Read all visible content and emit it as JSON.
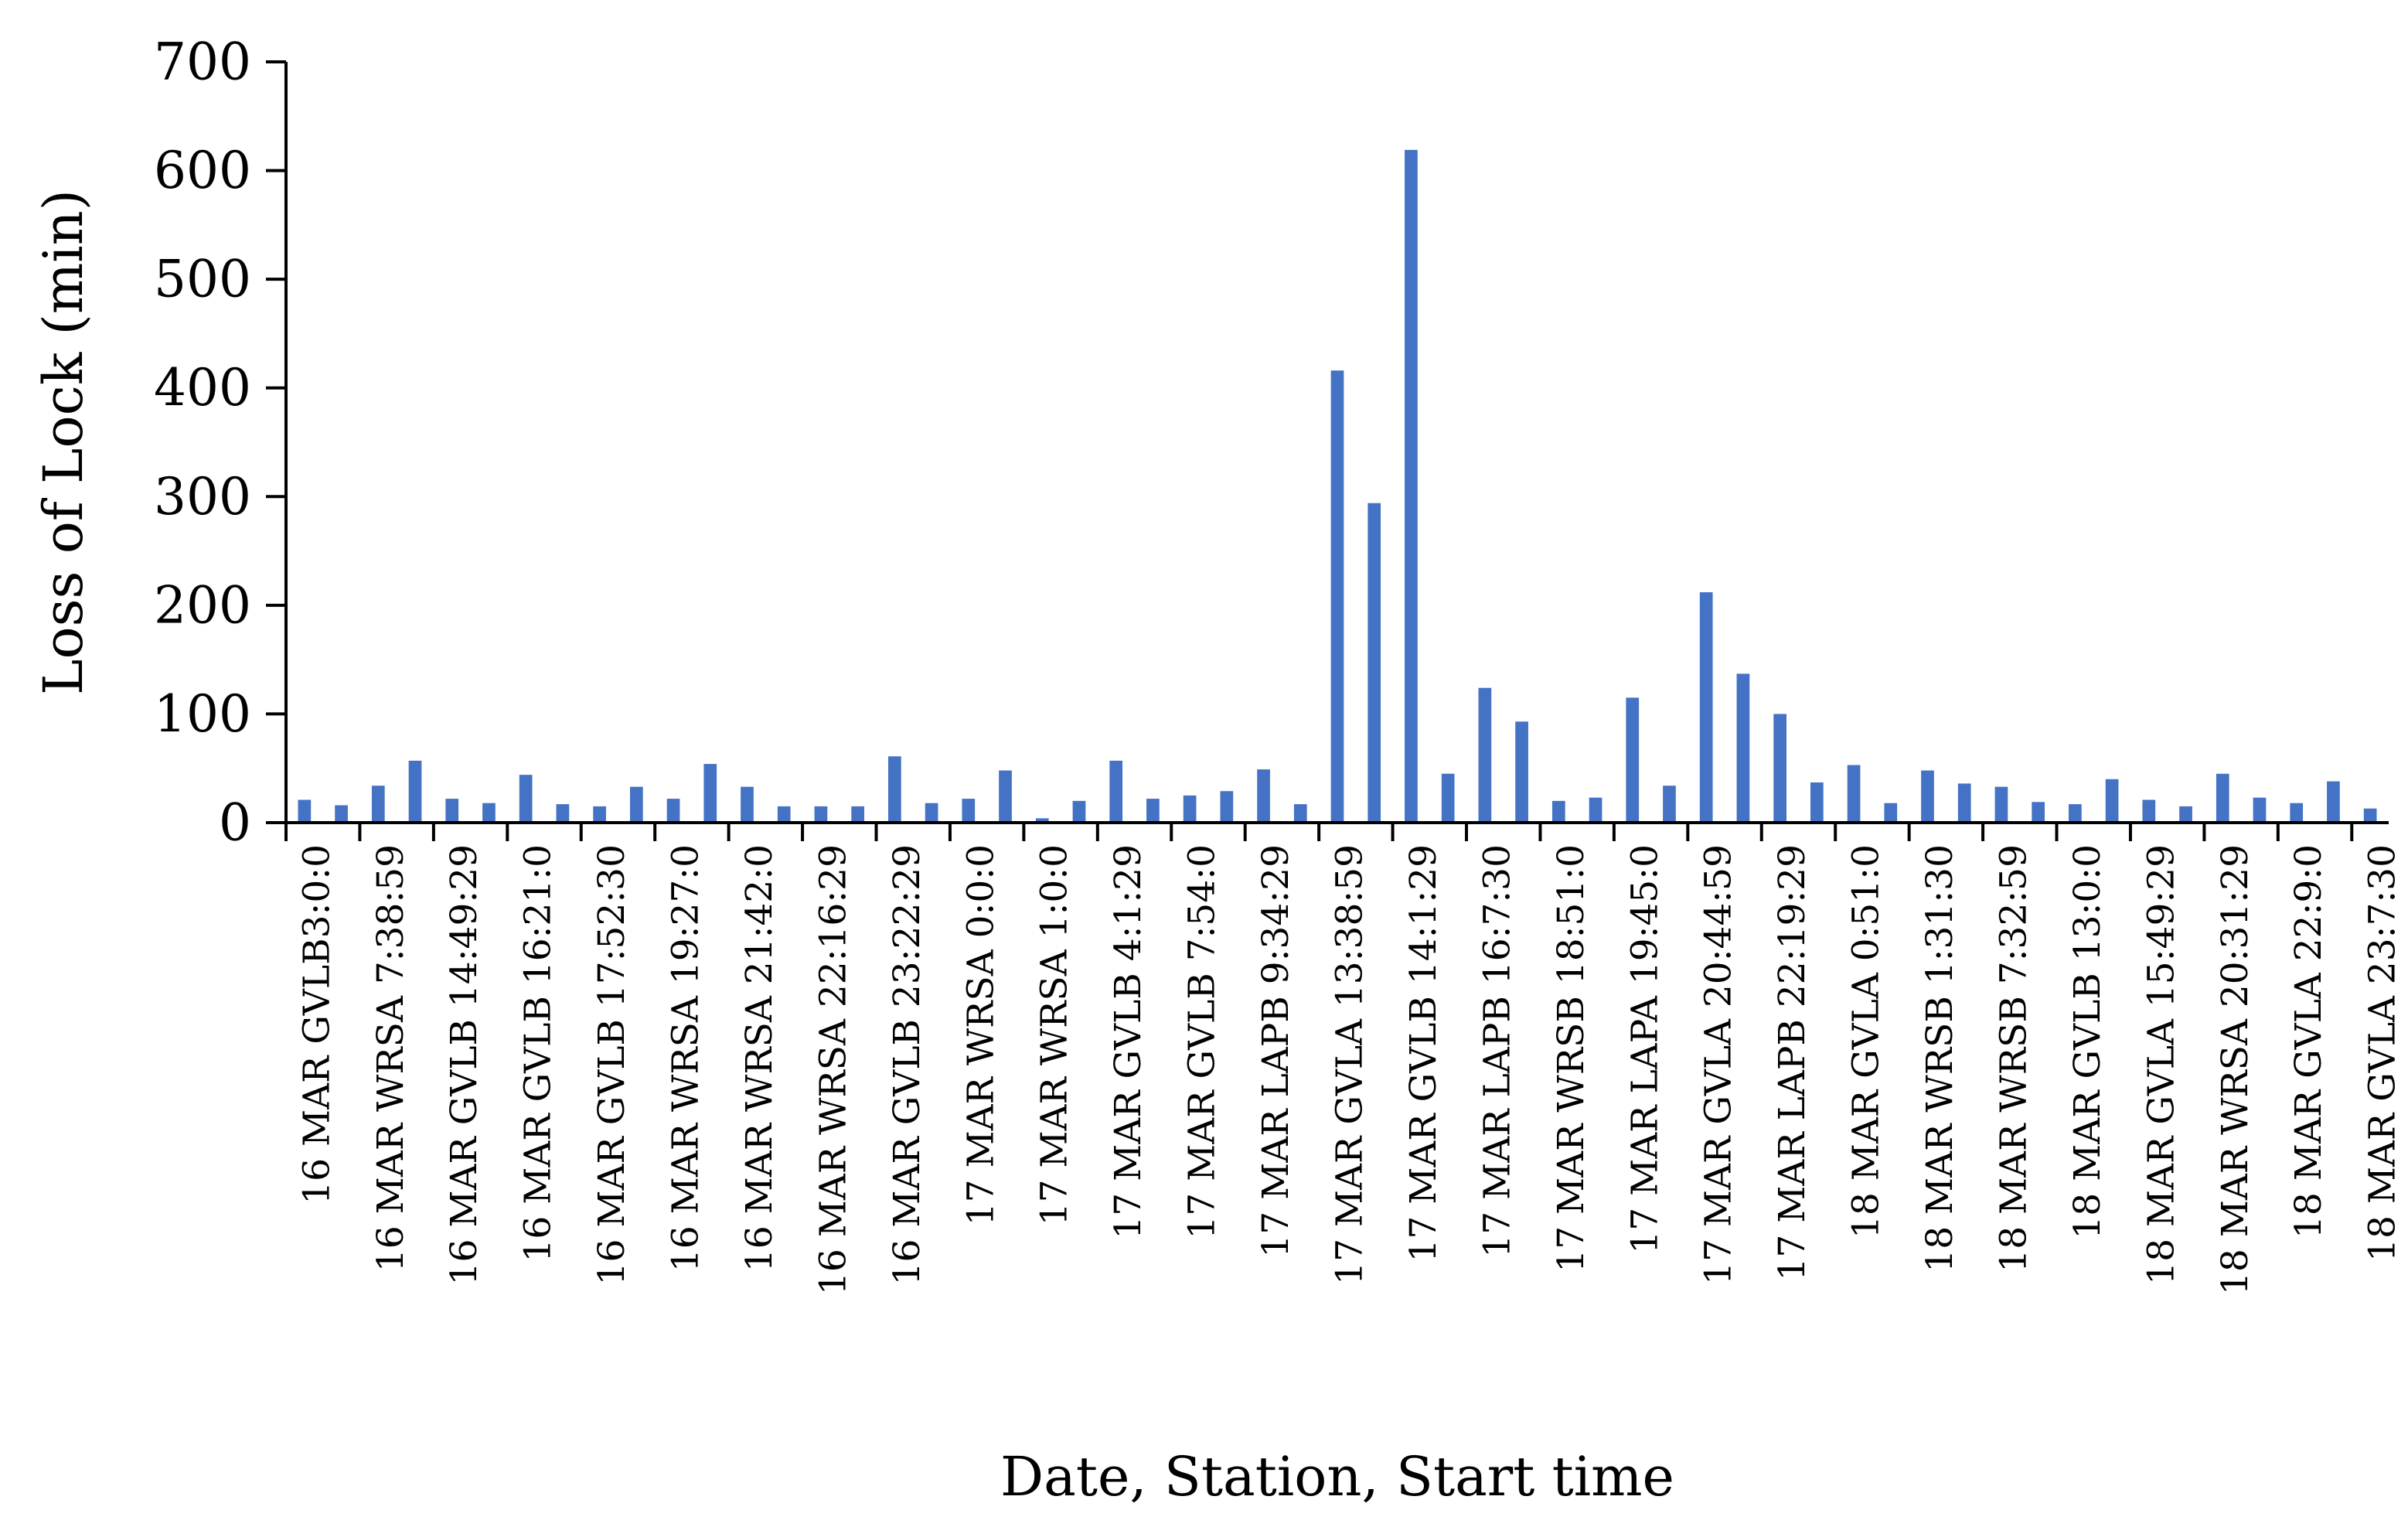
{
  "chart_data": {
    "type": "bar",
    "title": "",
    "xlabel": "Date, Station, Start time",
    "ylabel": "Loss of Lock (min)",
    "ylim": [
      0,
      700
    ],
    "yticks": [
      0,
      100,
      200,
      300,
      400,
      500,
      600,
      700
    ],
    "grid": false,
    "bar_color": "#4472C4",
    "labeled_every": 2,
    "categories": [
      "16 MAR GVLB3:0:0",
      "",
      "16 MAR WRSA 7:38:59",
      "",
      "16 MAR GVLB 14:49:29",
      "",
      "16 MAR GVLB 16:21:0",
      "",
      "16 MAR GVLB 17:52:30",
      "",
      "16 MAR WRSA 19:27:0",
      "",
      "16 MAR WRSA 21:42:0",
      "",
      "16 MAR WRSA 22:16:29",
      "",
      "16 MAR GVLB 23:22:29",
      "",
      "17 MAR WRSA 0:0:0",
      "",
      "17 MAR WRSA 1:0:0",
      "",
      "17 MAR GVLB 4:1:29",
      "",
      "17 MAR GVLB 7:54:0",
      "",
      "17 MAR LAPB 9:34:29",
      "",
      "17 MAR GVLA 13:38:59",
      "",
      "17 MAR GVLB 14:1:29",
      "",
      "17 MAR LAPB 16:7:30",
      "",
      "17 MAR WRSB 18:51:0",
      "",
      "17 MAR LAPA 19:45:0",
      "",
      "17 MAR GVLA 20:44:59",
      "",
      "17 MAR LAPB 22:19:29",
      "",
      "18 MAR GVLA 0:51:0",
      "",
      "18 MAR WRSB 1:31:30",
      "",
      "18 MAR WRSB 7:32:59",
      "",
      "18 MAR GVLB 13:0:0",
      "",
      "18 MAR GVLA 15:49:29",
      "",
      "18 MAR WRSA 20:31:29",
      "",
      "18 MAR GVLA 22:9:0",
      "",
      "18 MAR GVLA 23:7:30"
    ],
    "values": [
      21,
      16,
      34,
      57,
      22,
      18,
      44,
      17,
      15,
      33,
      22,
      54,
      33,
      15,
      15,
      15,
      61,
      18,
      22,
      48,
      4,
      20,
      57,
      22,
      25,
      29,
      49,
      17,
      416,
      294,
      619,
      45,
      124,
      93,
      20,
      23,
      115,
      34,
      212,
      137,
      100,
      37,
      53,
      18,
      48,
      36,
      33,
      19,
      17,
      40,
      21,
      15,
      45,
      23,
      18,
      38,
      13
    ]
  }
}
